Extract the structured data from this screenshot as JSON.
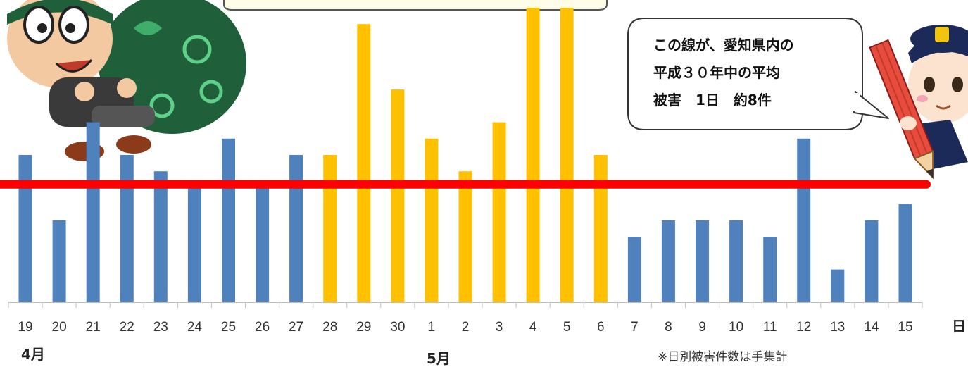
{
  "chart_data": {
    "type": "bar",
    "categories": [
      "19",
      "20",
      "21",
      "22",
      "23",
      "24",
      "25",
      "26",
      "27",
      "28",
      "29",
      "30",
      "1",
      "2",
      "3",
      "4",
      "5",
      "6",
      "7",
      "8",
      "9",
      "10",
      "11",
      "12",
      "13",
      "14",
      "15"
    ],
    "values": [
      9,
      5,
      11,
      9,
      8,
      7,
      10,
      7,
      9,
      9,
      17,
      13,
      10,
      8,
      11,
      18,
      18,
      9,
      4,
      5,
      5,
      5,
      4,
      10,
      2,
      5,
      6
    ],
    "highlight_range": [
      "28",
      "6"
    ],
    "reference_line": 7.2,
    "ylim": [
      0,
      18
    ],
    "xlabel": "日",
    "month_labels": [
      "4月",
      "5月"
    ],
    "colors": {
      "normal": "#4F81BD",
      "highlight": "#FFC000",
      "reference_line": "#FF0000"
    },
    "annotation": [
      "この線が、愛知県内の",
      "平成３０年中の平均",
      "被害　1日　約8件"
    ],
    "note": "※日別被害件数は手集計",
    "grid": false,
    "legend": "none"
  }
}
